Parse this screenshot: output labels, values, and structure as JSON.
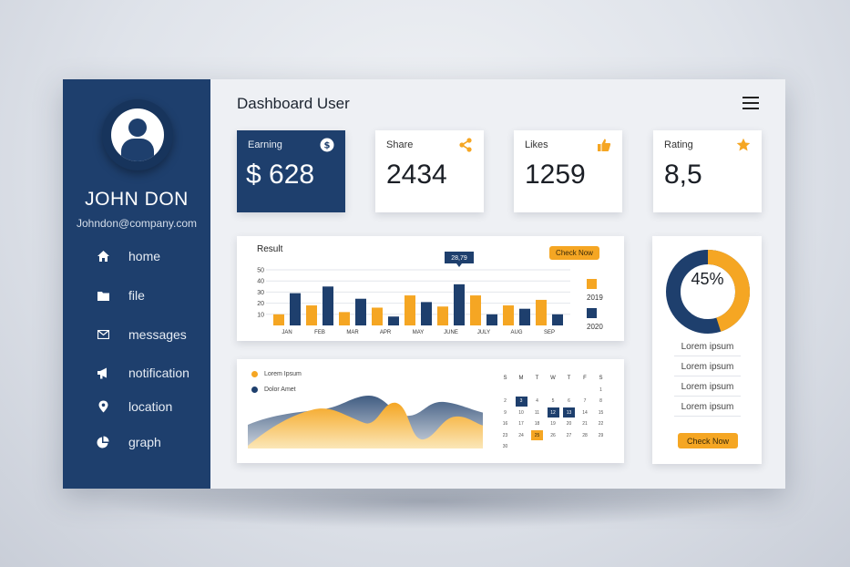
{
  "user": {
    "name": "JOHN DON",
    "email": "Johndon@company.com"
  },
  "nav": [
    {
      "label": "home",
      "icon": "home-icon"
    },
    {
      "label": "file",
      "icon": "folder-icon"
    },
    {
      "label": "messages",
      "icon": "envelope-icon"
    },
    {
      "label": "notification",
      "icon": "megaphone-icon"
    },
    {
      "label": "location",
      "icon": "location-pin-icon"
    },
    {
      "label": "graph",
      "icon": "pie-chart-icon"
    }
  ],
  "header": {
    "title": "Dashboard User"
  },
  "stats": [
    {
      "label": "Earning",
      "value": "$ 628",
      "icon": "dollar-icon"
    },
    {
      "label": "Share",
      "value": "2434",
      "icon": "share-icon"
    },
    {
      "label": "Likes",
      "value": "1259",
      "icon": "thumbs-up-icon"
    },
    {
      "label": "Rating",
      "value": "8,5",
      "icon": "star-icon"
    }
  ],
  "result": {
    "title": "Result",
    "button": "Check Now",
    "tooltip": "28,79",
    "legend": [
      "2019",
      "2020"
    ]
  },
  "wave": {
    "legend": [
      "Lorem Ipsum",
      "Dolor Amet"
    ]
  },
  "calendar": {
    "headers": [
      "S",
      "M",
      "T",
      "W",
      "T",
      "F",
      "S"
    ],
    "days": [
      "1",
      "2",
      "3",
      "4",
      "5",
      "6",
      "7",
      "8",
      "9",
      "10",
      "11",
      "12",
      "13",
      "14",
      "15",
      "16",
      "17",
      "18",
      "19",
      "20",
      "21",
      "22",
      "23",
      "24",
      "25",
      "26",
      "27",
      "28",
      "29",
      "30"
    ],
    "first_weekday": 6,
    "selected_blue": [
      "3",
      "12",
      "13"
    ],
    "selected_orange": [
      "25"
    ]
  },
  "donut": {
    "percent_label": "45%",
    "value": 0.45
  },
  "right_list": [
    "Lorem ipsum",
    "Lorem ipsum",
    "Lorem ipsum",
    "Lorem ipsum"
  ],
  "right_button": "Check Now",
  "colors": {
    "navy": "#1e3f6d",
    "orange": "#f5a623",
    "panel": "#eef0f4"
  },
  "chart_data": {
    "type": "bar",
    "title": "Result",
    "categories": [
      "JAN",
      "FEB",
      "MAR",
      "APR",
      "MAY",
      "JUNE",
      "JULY",
      "AUG",
      "SEP"
    ],
    "series": [
      {
        "name": "2019",
        "values": [
          10,
          18,
          12,
          16,
          27,
          17,
          27,
          18,
          23
        ]
      },
      {
        "name": "2020",
        "values": [
          29,
          35,
          24,
          8,
          21,
          37,
          10,
          15,
          10
        ]
      }
    ],
    "yticks": [
      10,
      20,
      30,
      40,
      50
    ],
    "ylim": [
      0,
      50
    ],
    "annotation": {
      "category": "JUNE",
      "text": "28,79"
    }
  }
}
